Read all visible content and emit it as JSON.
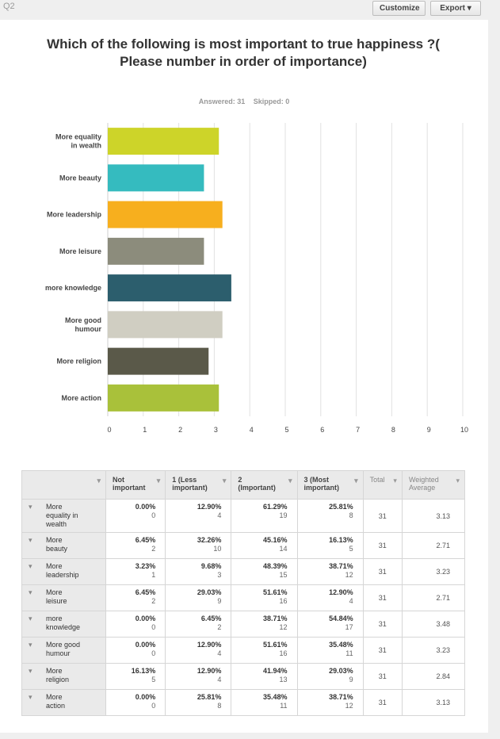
{
  "header": {
    "question_label": "Q2",
    "customize_label": "Customize",
    "export_label": "Export ▾"
  },
  "question": {
    "title": "Which of the following is most important to true happiness ?( Please number in order of importance)",
    "answered": "Answered: 31",
    "skipped": "Skipped: 0"
  },
  "colors": [
    "#cdd429",
    "#35bbbf",
    "#f7af1e",
    "#8c8c7c",
    "#2c5e6d",
    "#d0cec2",
    "#5a5949",
    "#a9c13a"
  ],
  "chart_data": {
    "type": "bar",
    "orientation": "horizontal",
    "categories": [
      "More equality in wealth",
      "More beauty",
      "More leadership",
      "More leisure",
      "more knowledge",
      "More good humour",
      "More religion",
      "More action"
    ],
    "category_lines": [
      [
        "More equality",
        "in wealth"
      ],
      [
        "More beauty"
      ],
      [
        "More leadership"
      ],
      [
        "More leisure"
      ],
      [
        "more knowledge"
      ],
      [
        "More good",
        "humour"
      ],
      [
        "More religion"
      ],
      [
        "More action"
      ]
    ],
    "values": [
      3.13,
      2.71,
      3.23,
      2.71,
      3.48,
      3.23,
      2.84,
      3.13
    ],
    "xlim": [
      0,
      10
    ],
    "xticks": [
      "0",
      "1",
      "2",
      "3",
      "4",
      "5",
      "6",
      "7",
      "8",
      "9",
      "10"
    ],
    "grid": true,
    "title": "",
    "xlabel": "",
    "ylabel": ""
  },
  "table": {
    "columns": [
      "Not important",
      "1 (Less important)",
      "2 (Important)",
      "3 (Most important)",
      "Total",
      "Weighted Average"
    ],
    "column_lines": [
      [
        "Not",
        "important"
      ],
      [
        "1 (Less",
        "important)"
      ],
      [
        "2",
        "(Important)"
      ],
      [
        "3 (Most",
        "important)"
      ],
      [
        "Total"
      ],
      [
        "Weighted",
        "Average"
      ]
    ],
    "rows": [
      {
        "label_lines": [
          "More",
          "equality in",
          "wealth"
        ],
        "cells": [
          [
            "0.00%",
            "0"
          ],
          [
            "12.90%",
            "4"
          ],
          [
            "61.29%",
            "19"
          ],
          [
            "25.81%",
            "8"
          ]
        ],
        "total": "31",
        "wavg": "3.13"
      },
      {
        "label_lines": [
          "More",
          "beauty"
        ],
        "cells": [
          [
            "6.45%",
            "2"
          ],
          [
            "32.26%",
            "10"
          ],
          [
            "45.16%",
            "14"
          ],
          [
            "16.13%",
            "5"
          ]
        ],
        "total": "31",
        "wavg": "2.71"
      },
      {
        "label_lines": [
          "More",
          "leadership"
        ],
        "cells": [
          [
            "3.23%",
            "1"
          ],
          [
            "9.68%",
            "3"
          ],
          [
            "48.39%",
            "15"
          ],
          [
            "38.71%",
            "12"
          ]
        ],
        "total": "31",
        "wavg": "3.23"
      },
      {
        "label_lines": [
          "More",
          "leisure"
        ],
        "cells": [
          [
            "6.45%",
            "2"
          ],
          [
            "29.03%",
            "9"
          ],
          [
            "51.61%",
            "16"
          ],
          [
            "12.90%",
            "4"
          ]
        ],
        "total": "31",
        "wavg": "2.71"
      },
      {
        "label_lines": [
          "more",
          "knowledge"
        ],
        "cells": [
          [
            "0.00%",
            "0"
          ],
          [
            "6.45%",
            "2"
          ],
          [
            "38.71%",
            "12"
          ],
          [
            "54.84%",
            "17"
          ]
        ],
        "total": "31",
        "wavg": "3.48"
      },
      {
        "label_lines": [
          "More good",
          "humour"
        ],
        "cells": [
          [
            "0.00%",
            "0"
          ],
          [
            "12.90%",
            "4"
          ],
          [
            "51.61%",
            "16"
          ],
          [
            "35.48%",
            "11"
          ]
        ],
        "total": "31",
        "wavg": "3.23"
      },
      {
        "label_lines": [
          "More",
          "religion"
        ],
        "cells": [
          [
            "16.13%",
            "5"
          ],
          [
            "12.90%",
            "4"
          ],
          [
            "41.94%",
            "13"
          ],
          [
            "29.03%",
            "9"
          ]
        ],
        "total": "31",
        "wavg": "2.84"
      },
      {
        "label_lines": [
          "More",
          "action"
        ],
        "cells": [
          [
            "0.00%",
            "0"
          ],
          [
            "25.81%",
            "8"
          ],
          [
            "35.48%",
            "11"
          ],
          [
            "38.71%",
            "12"
          ]
        ],
        "total": "31",
        "wavg": "3.13"
      }
    ]
  }
}
